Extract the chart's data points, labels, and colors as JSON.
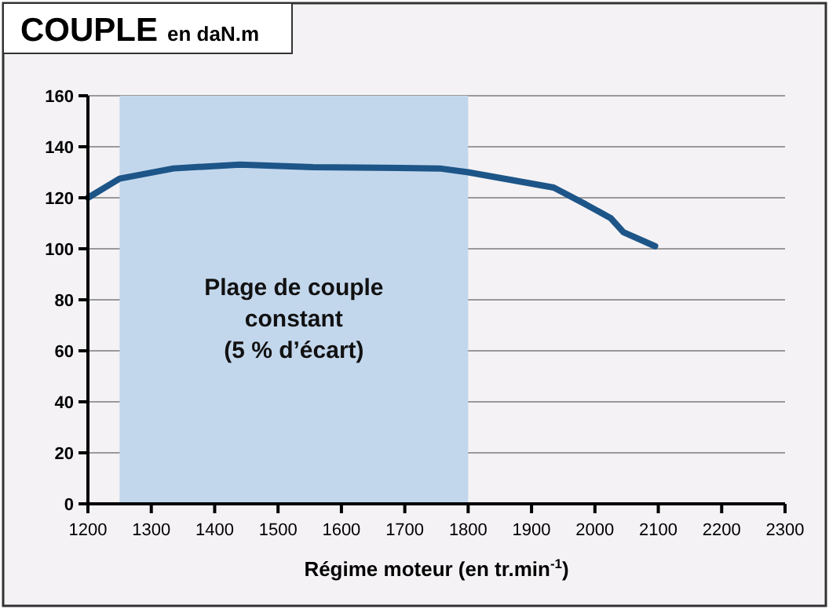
{
  "chart_data": {
    "type": "line",
    "title": "COUPLE",
    "subtitle": "en daN.m",
    "xlabel": "Régime moteur (en tr.min$^{-1}$)",
    "x": [
      1200,
      1250,
      1335,
      1440,
      1555,
      1755,
      1800,
      1935,
      1985,
      2025,
      2045,
      2095
    ],
    "series": [
      {
        "color": "#1d5588",
        "values": [
          120,
          127.5,
          131.5,
          133,
          132,
          131.5,
          130,
          124,
          117.5,
          112,
          106.5,
          101
        ]
      }
    ],
    "xlim": [
      1200,
      2300
    ],
    "xticks": [
      1200,
      1300,
      1400,
      1500,
      1600,
      1700,
      1800,
      1900,
      2000,
      2100,
      2200,
      2300
    ],
    "ylim": [
      0,
      160
    ],
    "yticks": [
      0,
      20,
      40,
      60,
      80,
      100,
      120,
      140,
      160
    ],
    "grid": "y",
    "marker": "none",
    "line_style": "solid",
    "bands": [
      {
        "axis": "x",
        "from": 1250,
        "to": 1800,
        "label": "Plage de couple constant (5 % d’écart)",
        "color": "#c3d7ec"
      }
    ]
  }
}
